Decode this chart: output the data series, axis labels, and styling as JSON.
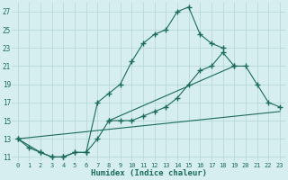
{
  "line1_x": [
    0,
    1,
    2,
    3,
    4,
    5,
    6,
    7,
    8,
    9,
    10,
    11,
    12,
    13,
    14,
    15,
    16,
    17,
    18
  ],
  "line1_y": [
    13,
    12,
    11.5,
    11,
    11,
    11.5,
    11.5,
    17,
    18,
    19,
    21.5,
    23.5,
    24.5,
    25,
    27,
    27.5,
    24.5,
    23.5,
    23
  ],
  "line2_x": [
    0,
    2,
    3,
    4,
    5,
    6,
    7,
    8,
    19,
    20,
    21,
    22,
    23
  ],
  "line2_y": [
    13,
    11.5,
    11,
    11,
    11.5,
    11.5,
    13,
    15,
    21,
    21,
    19,
    17,
    16.5
  ],
  "line2b_x": [
    8,
    9,
    10,
    11,
    12,
    13,
    14,
    15,
    16,
    17,
    18,
    19
  ],
  "line2b_y": [
    15,
    15,
    15,
    15.5,
    16,
    16.5,
    17.5,
    19,
    20.5,
    21,
    22.5,
    21
  ],
  "line3_x": [
    0,
    23
  ],
  "line3_y": [
    13,
    16
  ],
  "color": "#1a6b5a",
  "bg_color": "#d6eef0",
  "grid_color": "#b8d8dc",
  "xlabel": "Humidex (Indice chaleur)",
  "xlim": [
    -0.5,
    23.5
  ],
  "ylim": [
    10.5,
    28
  ],
  "yticks": [
    11,
    13,
    15,
    17,
    19,
    21,
    23,
    25,
    27
  ],
  "xticks": [
    0,
    1,
    2,
    3,
    4,
    5,
    6,
    7,
    8,
    9,
    10,
    11,
    12,
    13,
    14,
    15,
    16,
    17,
    18,
    19,
    20,
    21,
    22,
    23
  ]
}
